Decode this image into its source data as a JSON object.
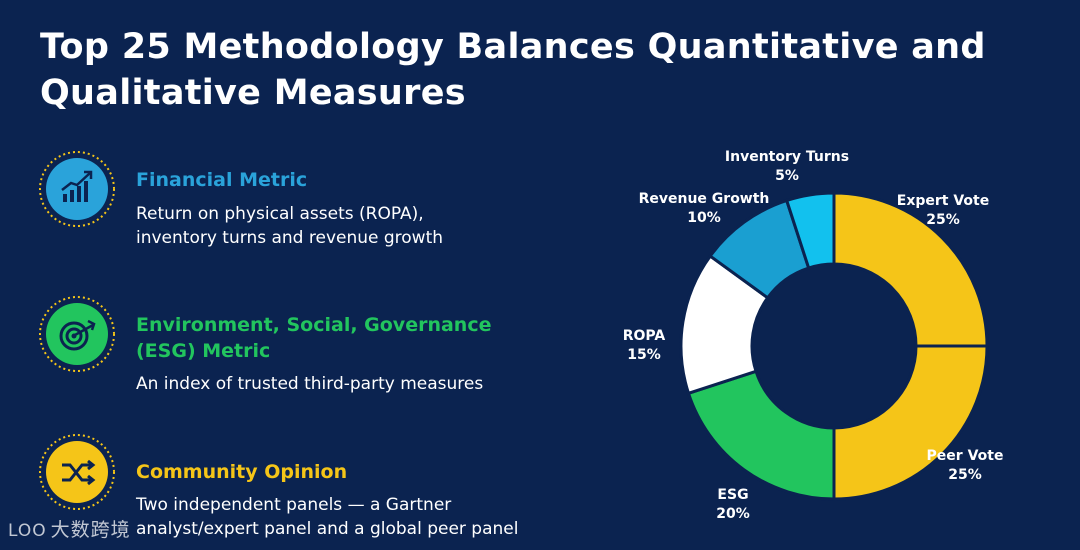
{
  "title": "Top 25 Methodology Balances Quantitative and Qualitative Measures",
  "colors": {
    "background": "#0b2350",
    "financial": "#26a7de",
    "esg": "#22c55e",
    "community": "#f5c518"
  },
  "items": [
    {
      "heading": "Financial Metric",
      "description": "Return on physical assets (ROPA), inventory turns and revenue growth",
      "icon": "growth-chart-icon",
      "color": "#2aa3da"
    },
    {
      "heading": "Environment, Social, Governance (ESG) Metric",
      "description": "An index of trusted third-party measures",
      "icon": "target-icon",
      "color": "#22c55e"
    },
    {
      "heading": "Community Opinion",
      "description": "Two independent panels — a Gartner analyst/expert panel and a global peer panel",
      "icon": "shuffle-icon",
      "color": "#f5c518"
    }
  ],
  "chart_data": {
    "type": "pie",
    "donut": true,
    "slices": [
      {
        "label": "Expert Vote",
        "value": 25,
        "display": "25%",
        "color": "#f5c518"
      },
      {
        "label": "Peer Vote",
        "value": 25,
        "display": "25%",
        "color": "#f5c518"
      },
      {
        "label": "ESG",
        "value": 20,
        "display": "20%",
        "color": "#22c55e"
      },
      {
        "label": "ROPA",
        "value": 15,
        "display": "15%",
        "color": "#ffffff"
      },
      {
        "label": "Revenue Growth",
        "value": 10,
        "display": "10%",
        "color": "#1a9fd1"
      },
      {
        "label": "Inventory Turns",
        "value": 5,
        "display": "5%",
        "color": "#12c1ee"
      }
    ]
  },
  "watermark": {
    "logo": "LOO",
    "text": "大数跨境"
  }
}
